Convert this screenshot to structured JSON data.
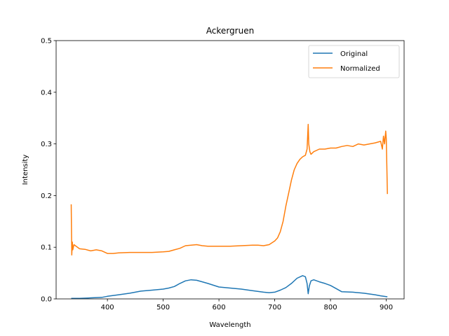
{
  "chart_data": {
    "type": "line",
    "title": "Ackergruen",
    "xlabel": "Wavelength",
    "ylabel": "Intensity",
    "xlim": [
      308,
      932
    ],
    "ylim": [
      0,
      0.5
    ],
    "xticks": [
      400,
      500,
      600,
      700,
      800,
      900
    ],
    "yticks": [
      0.0,
      0.1,
      0.2,
      0.3,
      0.4,
      0.5
    ],
    "grid": false,
    "legend_position": "top-right",
    "series": [
      {
        "name": "Original",
        "color": "#1f77b4",
        "x": [
          335,
          350,
          370,
          390,
          400,
          420,
          440,
          460,
          480,
          500,
          510,
          520,
          530,
          540,
          550,
          560,
          570,
          580,
          600,
          620,
          640,
          660,
          680,
          690,
          700,
          710,
          720,
          730,
          740,
          750,
          755,
          758,
          760,
          762,
          765,
          770,
          780,
          790,
          800,
          810,
          820,
          840,
          860,
          880,
          890,
          902
        ],
        "y": [
          0.001,
          0.001,
          0.002,
          0.003,
          0.005,
          0.008,
          0.011,
          0.015,
          0.017,
          0.019,
          0.021,
          0.024,
          0.03,
          0.035,
          0.037,
          0.036,
          0.033,
          0.03,
          0.023,
          0.021,
          0.019,
          0.016,
          0.013,
          0.012,
          0.013,
          0.017,
          0.022,
          0.03,
          0.04,
          0.045,
          0.043,
          0.03,
          0.01,
          0.025,
          0.035,
          0.037,
          0.033,
          0.03,
          0.026,
          0.02,
          0.014,
          0.013,
          0.011,
          0.008,
          0.006,
          0.004
        ]
      },
      {
        "name": "Normalized",
        "color": "#ff7f0e",
        "x": [
          335,
          336,
          337,
          338,
          340,
          350,
          360,
          370,
          380,
          390,
          400,
          410,
          420,
          440,
          460,
          480,
          500,
          510,
          520,
          530,
          540,
          550,
          560,
          570,
          580,
          600,
          620,
          640,
          660,
          670,
          680,
          690,
          700,
          705,
          710,
          715,
          720,
          725,
          730,
          735,
          740,
          745,
          750,
          755,
          758,
          760,
          761,
          763,
          765,
          770,
          780,
          790,
          800,
          810,
          820,
          830,
          840,
          850,
          860,
          870,
          880,
          890,
          893,
          895,
          897,
          899,
          900,
          902
        ],
        "y": [
          0.183,
          0.085,
          0.11,
          0.095,
          0.105,
          0.097,
          0.096,
          0.093,
          0.095,
          0.093,
          0.088,
          0.088,
          0.089,
          0.09,
          0.09,
          0.09,
          0.091,
          0.092,
          0.095,
          0.098,
          0.103,
          0.104,
          0.105,
          0.103,
          0.102,
          0.102,
          0.102,
          0.103,
          0.104,
          0.104,
          0.103,
          0.105,
          0.112,
          0.118,
          0.13,
          0.15,
          0.18,
          0.205,
          0.23,
          0.25,
          0.262,
          0.27,
          0.275,
          0.278,
          0.29,
          0.338,
          0.3,
          0.285,
          0.28,
          0.285,
          0.29,
          0.29,
          0.292,
          0.292,
          0.295,
          0.297,
          0.295,
          0.3,
          0.298,
          0.3,
          0.302,
          0.305,
          0.29,
          0.315,
          0.3,
          0.325,
          0.31,
          0.203
        ]
      }
    ]
  }
}
